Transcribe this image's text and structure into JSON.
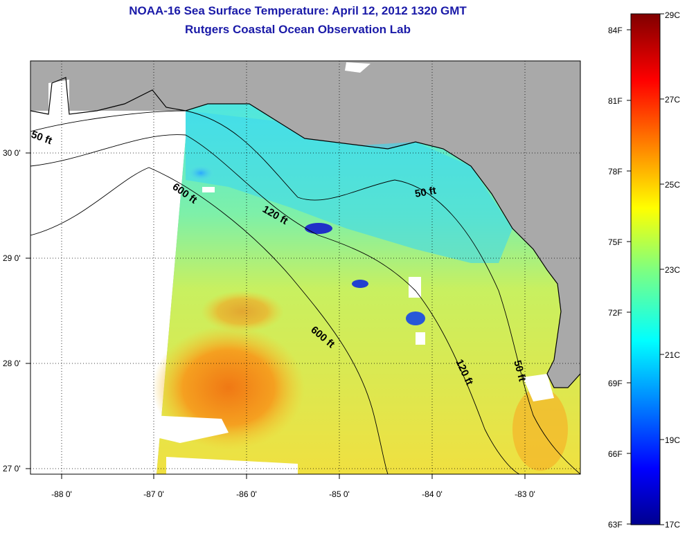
{
  "title": "NOAA-16 Sea Surface Temperature:  April 12, 2012 1320 GMT",
  "subtitle": "Rutgers Coastal Ocean Observation Lab",
  "map": {
    "lat_ticks": [
      "30 0'",
      "29 0'",
      "28 0'",
      "27 0'"
    ],
    "lon_ticks": [
      "-88 0'",
      "-87 0'",
      "-86 0'",
      "-85 0'",
      "-84 0'",
      "-83 0'"
    ],
    "contour_labels": [
      "50 ft",
      "600 ft",
      "120 ft",
      "50 ft",
      "600 ft",
      "120 ft",
      "50 ft"
    ],
    "colors": {
      "land": "#a9a9a9",
      "no_data": "#ffffff",
      "contour": "#000000",
      "grid": "#000000"
    }
  },
  "colorbar": {
    "fahrenheit": [
      "84F",
      "81F",
      "78F",
      "75F",
      "72F",
      "69F",
      "66F",
      "63F"
    ],
    "celsius": [
      "29C",
      "27C",
      "25C",
      "23C",
      "21C",
      "19C",
      "17C"
    ],
    "min_c": 17,
    "max_c": 29,
    "colormap": "jet"
  }
}
